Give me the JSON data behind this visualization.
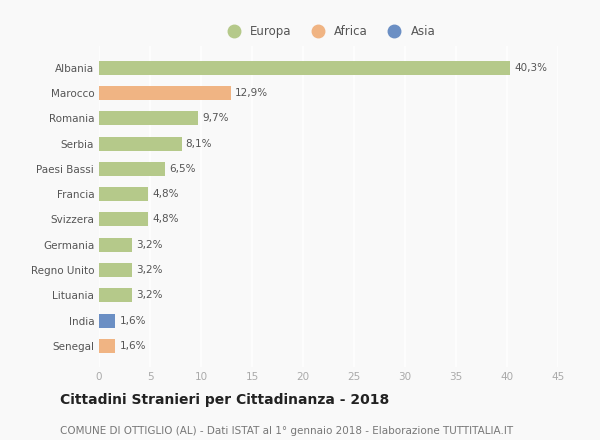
{
  "countries": [
    "Albania",
    "Marocco",
    "Romania",
    "Serbia",
    "Paesi Bassi",
    "Francia",
    "Svizzera",
    "Germania",
    "Regno Unito",
    "Lituania",
    "India",
    "Senegal"
  ],
  "values": [
    40.3,
    12.9,
    9.7,
    8.1,
    6.5,
    4.8,
    4.8,
    3.2,
    3.2,
    3.2,
    1.6,
    1.6
  ],
  "labels": [
    "40,3%",
    "12,9%",
    "9,7%",
    "8,1%",
    "6,5%",
    "4,8%",
    "4,8%",
    "3,2%",
    "3,2%",
    "3,2%",
    "1,6%",
    "1,6%"
  ],
  "continents": [
    "Europa",
    "Africa",
    "Europa",
    "Europa",
    "Europa",
    "Europa",
    "Europa",
    "Europa",
    "Europa",
    "Europa",
    "Asia",
    "Africa"
  ],
  "colors": {
    "Europa": "#b5c98a",
    "Africa": "#f0b483",
    "Asia": "#6b8fc4"
  },
  "title": "Cittadini Stranieri per Cittadinanza - 2018",
  "subtitle": "COMUNE DI OTTIGLIO (AL) - Dati ISTAT al 1° gennaio 2018 - Elaborazione TUTTITALIA.IT",
  "xlim": [
    0,
    45
  ],
  "xticks": [
    0,
    5,
    10,
    15,
    20,
    25,
    30,
    35,
    40,
    45
  ],
  "background_color": "#f9f9f9",
  "grid_color": "#ffffff",
  "title_fontsize": 10,
  "subtitle_fontsize": 7.5,
  "label_fontsize": 7.5,
  "tick_fontsize": 7.5,
  "legend_fontsize": 8.5
}
